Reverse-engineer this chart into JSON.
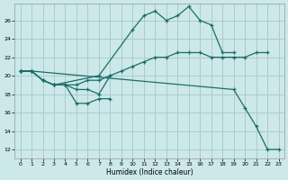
{
  "background_color": "#cce8e8",
  "grid_color": "#aacccc",
  "line_color": "#1a6e68",
  "xlabel": "Humidex (Indice chaleur)",
  "xlim": [
    -0.5,
    23.5
  ],
  "ylim": [
    11.0,
    27.8
  ],
  "yticks": [
    12,
    14,
    16,
    18,
    20,
    22,
    24,
    26
  ],
  "xticks": [
    0,
    1,
    2,
    3,
    4,
    5,
    6,
    7,
    8,
    9,
    10,
    11,
    12,
    13,
    14,
    15,
    16,
    17,
    18,
    19,
    20,
    21,
    22,
    23
  ],
  "lines": [
    {
      "x": [
        3,
        7,
        10,
        11,
        12,
        13,
        14,
        15,
        16,
        17,
        18,
        19
      ],
      "y": [
        19.0,
        20.0,
        25.0,
        26.5,
        27.0,
        26.0,
        26.5,
        27.5,
        26.0,
        25.5,
        22.5,
        22.5
      ]
    },
    {
      "x": [
        0,
        1,
        2,
        3,
        4,
        5,
        6,
        7,
        8,
        9,
        10,
        11,
        12,
        13,
        14,
        15,
        16,
        17,
        18,
        19,
        20,
        21,
        22
      ],
      "y": [
        20.5,
        20.5,
        19.5,
        19.0,
        19.0,
        19.0,
        19.5,
        19.5,
        20.0,
        20.5,
        21.0,
        21.5,
        22.0,
        22.0,
        22.5,
        22.5,
        22.5,
        22.0,
        22.0,
        22.0,
        22.0,
        22.5,
        22.5
      ]
    },
    {
      "x": [
        0,
        1,
        2,
        3,
        4,
        5,
        6,
        7,
        8
      ],
      "y": [
        20.5,
        20.5,
        19.5,
        19.0,
        19.0,
        17.0,
        17.0,
        17.5,
        17.5
      ]
    },
    {
      "x": [
        0,
        1,
        2,
        3,
        4,
        5,
        6,
        7,
        8
      ],
      "y": [
        20.5,
        20.5,
        19.5,
        19.0,
        19.0,
        18.5,
        18.5,
        18.0,
        20.0
      ]
    },
    {
      "x": [
        0,
        1,
        19,
        20,
        21,
        22,
        23
      ],
      "y": [
        20.5,
        20.5,
        18.5,
        16.5,
        14.5,
        12.0,
        12.0
      ]
    }
  ]
}
